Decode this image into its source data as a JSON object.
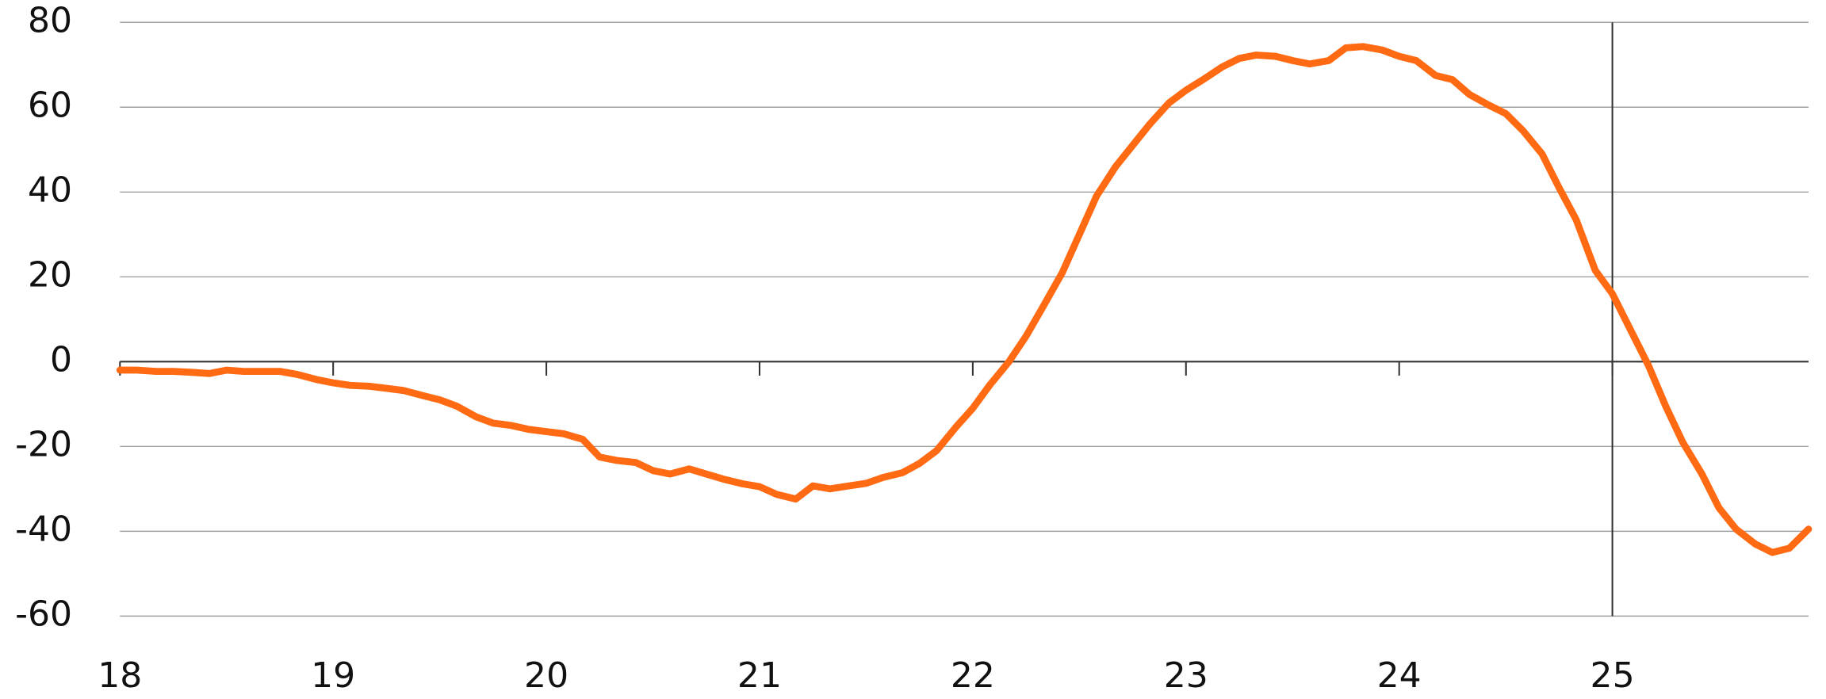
{
  "chart_data": {
    "type": "line",
    "x": [
      18,
      18.08,
      18.17,
      18.25,
      18.33,
      18.42,
      18.5,
      18.58,
      18.67,
      18.75,
      18.83,
      18.92,
      19,
      19.08,
      19.17,
      19.25,
      19.33,
      19.42,
      19.5,
      19.58,
      19.67,
      19.75,
      19.83,
      19.92,
      20,
      20.08,
      20.17,
      20.25,
      20.33,
      20.42,
      20.5,
      20.58,
      20.67,
      20.75,
      20.83,
      20.92,
      21,
      21.08,
      21.17,
      21.25,
      21.33,
      21.42,
      21.5,
      21.58,
      21.67,
      21.75,
      21.83,
      21.92,
      22,
      22.08,
      22.17,
      22.25,
      22.33,
      22.42,
      22.5,
      22.58,
      22.67,
      22.75,
      22.83,
      22.92,
      23,
      23.08,
      23.17,
      23.25,
      23.33,
      23.42,
      23.5,
      23.58,
      23.67,
      23.75,
      23.83,
      23.92,
      24,
      24.08,
      24.17,
      24.25,
      24.33,
      24.42,
      24.5,
      24.58,
      24.67,
      24.75,
      24.83,
      24.92,
      25,
      25.08,
      25.17,
      25.25,
      25.33,
      25.42,
      25.5,
      25.58,
      25.67,
      25.75,
      25.83,
      25.92
    ],
    "series": [
      {
        "color": "#ff6a13",
        "values": [
          -2,
          -2,
          -2.3,
          -2.3,
          -2.5,
          -2.8,
          -2,
          -2.3,
          -2.3,
          -2.3,
          -3,
          -4.2,
          -5,
          -5.6,
          -5.8,
          -6.3,
          -6.8,
          -8,
          -9,
          -10.5,
          -13,
          -14.5,
          -15,
          -16,
          -16.5,
          -17,
          -18.3,
          -22.5,
          -23.3,
          -23.8,
          -25.7,
          -26.5,
          -25.3,
          -26.5,
          -27.7,
          -28.8,
          -29.5,
          -31.3,
          -32.4,
          -29.3,
          -30,
          -29.3,
          -28.7,
          -27.3,
          -26.2,
          -24,
          -21,
          -15.5,
          -11,
          -5.5,
          0,
          6,
          13,
          21,
          30,
          39,
          46,
          51,
          56,
          61,
          64,
          66.5,
          69.5,
          71.5,
          72.3,
          72,
          71,
          70.2,
          71,
          74,
          74.3,
          73.5,
          72,
          71,
          67.5,
          66.5,
          63,
          60.5,
          58.5,
          54.5,
          49,
          41,
          33.5,
          21.5,
          16,
          8,
          -1,
          -10.5,
          -19,
          -26.5,
          -34.5,
          -39.5,
          -43,
          -45,
          -44,
          -39.5
        ]
      }
    ],
    "xlim": [
      18,
      25.92
    ],
    "xticks": [
      18,
      19,
      20,
      21,
      22,
      23,
      24,
      25
    ],
    "ylim": [
      -60,
      80
    ],
    "yticks": [
      -60,
      -40,
      -20,
      0,
      20,
      40,
      60,
      80
    ],
    "grid": true,
    "vline": 25
  }
}
